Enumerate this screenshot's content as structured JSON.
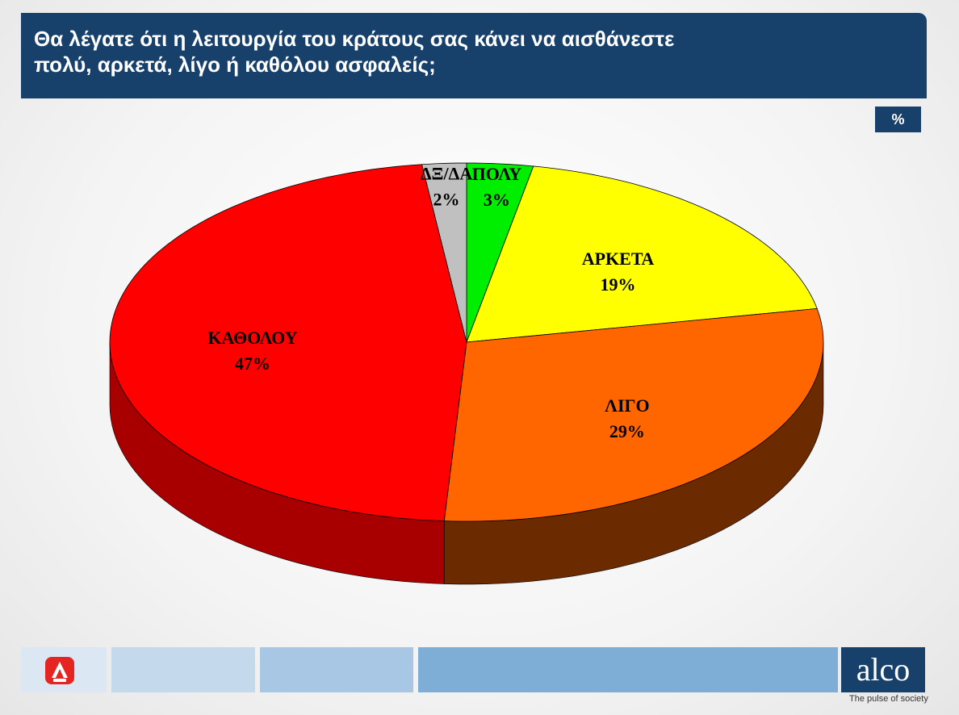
{
  "header": {
    "title_line1": "Θα λέγατε ότι η λειτουργία του κράτους σας  κάνει να αισθάνεστε",
    "title_line2": "πολύ, αρκετά, λίγο ή καθόλου ασφαλείς;"
  },
  "unit_label": "%",
  "chart_data": {
    "type": "pie",
    "unit": "%",
    "categories": [
      "ΠΟΛΥ",
      "ΑΡΚΕΤΑ",
      "ΛΙΓΟ",
      "ΚΑΘΟΛΟΥ",
      "ΔΞ/ΔΑ"
    ],
    "values": [
      3,
      19,
      29,
      47,
      2
    ],
    "value_labels": [
      "3%",
      "19%",
      "29%",
      "47%",
      "2%"
    ],
    "colors": [
      "#00ee00",
      "#ffff00",
      "#ff6600",
      "#ff0000",
      "#c0c0c0"
    ],
    "side_colors": [
      "#009900",
      "#a8a800",
      "#6b2a00",
      "#a80000",
      "#808080"
    ],
    "start": "12 o'clock, clockwise",
    "view": "3D tilted"
  },
  "footer": {
    "brand": "alco",
    "tagline": "The pulse of society",
    "colors": [
      "#dbe7f3",
      "#c5d9ec",
      "#a8c7e4",
      "#7eadd6"
    ]
  }
}
